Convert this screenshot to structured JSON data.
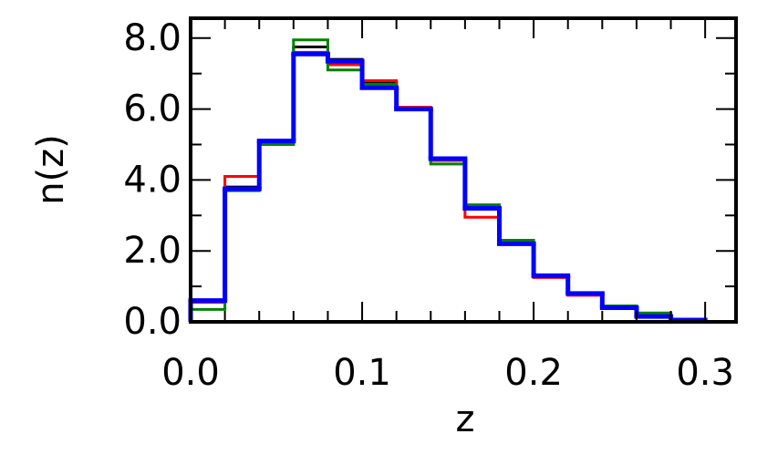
{
  "chart_data": {
    "type": "step-histogram",
    "x_label": "z",
    "y_label": "n(z)",
    "bins": [
      0,
      0.02,
      0.04,
      0.06,
      0.08,
      0.1,
      0.12,
      0.14,
      0.16,
      0.18,
      0.2,
      0.22,
      0.24,
      0.26,
      0.28,
      0.3
    ],
    "series": [
      {
        "color": "#000000",
        "values": [
          0.6,
          3.8,
          5.05,
          7.75,
          7.4,
          6.75,
          6.0,
          4.55,
          3.25,
          2.2,
          1.3,
          0.8,
          0.4,
          0.2,
          0.05
        ]
      },
      {
        "color": "#ff0000",
        "values": [
          0.55,
          4.1,
          5.0,
          7.6,
          7.25,
          6.8,
          6.05,
          4.55,
          2.95,
          2.25,
          1.25,
          0.75,
          0.4,
          0.2,
          0.05
        ]
      },
      {
        "color": "#008000",
        "values": [
          0.35,
          3.7,
          5.0,
          7.95,
          7.1,
          6.7,
          6.0,
          4.45,
          3.3,
          2.3,
          1.3,
          0.8,
          0.45,
          0.25,
          0.05
        ]
      },
      {
        "color": "#0000ff",
        "values": [
          0.6,
          3.75,
          5.1,
          7.55,
          7.35,
          6.6,
          6.0,
          4.6,
          3.2,
          2.2,
          1.3,
          0.8,
          0.4,
          0.15,
          0.05
        ]
      }
    ],
    "xlim": [
      0,
      0.318
    ],
    "ylim": [
      0,
      8.56
    ],
    "xticks": [
      {
        "value": 0,
        "label": "0.0"
      },
      0.1,
      0.2,
      0.3
    ],
    "xminorticks": [
      0.02,
      0.04,
      0.06,
      0.08,
      0.12,
      0.14,
      0.16,
      0.18,
      0.22,
      0.24,
      0.26,
      0.28
    ],
    "yticks": [
      {
        "value": 0,
        "label": "0.0"
      },
      {
        "value": 2,
        "label": "2.0"
      },
      {
        "value": 4,
        "label": "4.0"
      },
      {
        "value": 6,
        "label": "6.0"
      },
      {
        "value": 8,
        "label": "8.0"
      }
    ],
    "yminorticks": [
      1,
      3,
      5,
      7
    ]
  }
}
